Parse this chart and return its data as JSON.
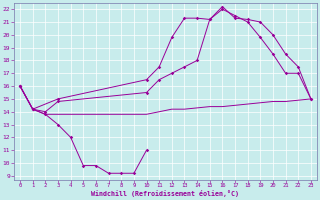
{
  "xlabel": "Windchill (Refroidissement éolien,°C)",
  "bg_color": "#c8ecec",
  "grid_color": "#ffffff",
  "line_color": "#990099",
  "spine_color": "#7777aa",
  "xlim": [
    -0.5,
    23.5
  ],
  "ylim": [
    8.7,
    22.5
  ],
  "yticks": [
    9,
    10,
    11,
    12,
    13,
    14,
    15,
    16,
    17,
    18,
    19,
    20,
    21,
    22
  ],
  "xticks": [
    0,
    1,
    2,
    3,
    4,
    5,
    6,
    7,
    8,
    9,
    10,
    11,
    12,
    13,
    14,
    15,
    16,
    17,
    18,
    19,
    20,
    21,
    22,
    23
  ],
  "line1_x": [
    0,
    1,
    2,
    3,
    4,
    5,
    6,
    7,
    8,
    9,
    10
  ],
  "line1_y": [
    16.0,
    14.2,
    13.8,
    13.0,
    12.0,
    9.8,
    9.8,
    9.2,
    9.2,
    9.2,
    11.0
  ],
  "line2_x": [
    0,
    1,
    3,
    10,
    11,
    12,
    13,
    14,
    15,
    16,
    17,
    18,
    19,
    20,
    21,
    22,
    23
  ],
  "line2_y": [
    16.0,
    14.2,
    15.0,
    16.5,
    17.5,
    19.8,
    21.3,
    21.3,
    21.2,
    22.2,
    21.3,
    21.2,
    21.0,
    20.0,
    18.5,
    17.5,
    15.0
  ],
  "line3_x": [
    0,
    1,
    2,
    3,
    10,
    11,
    12,
    13,
    14,
    15,
    16,
    17,
    18,
    19,
    20,
    21,
    22,
    23
  ],
  "line3_y": [
    16.0,
    14.2,
    14.0,
    14.8,
    15.5,
    16.5,
    17.0,
    17.5,
    18.0,
    21.2,
    22.0,
    21.5,
    21.0,
    19.8,
    18.5,
    17.0,
    17.0,
    15.0
  ],
  "line4_x": [
    0,
    1,
    2,
    10,
    11,
    12,
    13,
    14,
    15,
    16,
    17,
    18,
    19,
    20,
    21,
    22,
    23
  ],
  "line4_y": [
    16.0,
    14.2,
    13.8,
    13.8,
    14.0,
    14.2,
    14.2,
    14.3,
    14.4,
    14.4,
    14.5,
    14.6,
    14.7,
    14.8,
    14.8,
    14.9,
    15.0
  ]
}
